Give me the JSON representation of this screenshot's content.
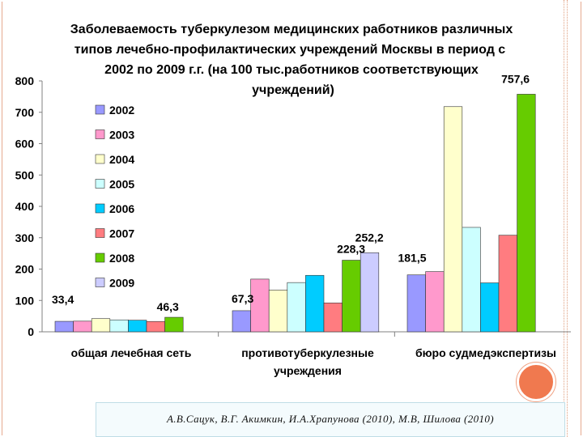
{
  "colors": {
    "series": [
      "#9999ff",
      "#ff99cc",
      "#ffffcc",
      "#ccffff",
      "#00ccff",
      "#ff7c80",
      "#66cc00",
      "#ccccff"
    ],
    "orange_accent": "#f0794f"
  },
  "footer": {
    "citation": "А.В.Сацук, В.Г. Акимкин,  И.А.Храпунова (2010), М.В, Шилова (2010)"
  },
  "chart_data": {
    "type": "bar",
    "title": "Заболеваемость туберкулезом медицинских работников различных типов лечебно-профилактических учреждений Москвы в период с 2002 по 2009 г.г. (на 100 тыс.работников соответствующих учреждений)",
    "title_lines": [
      "Заболеваемость туберкулезом медицинских работников различных",
      "типов лечебно-профилактических учреждений  Москвы в период с",
      "2002 по 2009 г.г. (на 100 тыс.работников соответствующих",
      "учреждений)"
    ],
    "categories": [
      "общая лечебная сеть",
      "противотуберкулезные учреждения",
      "бюро судмедэкспертизы"
    ],
    "category_lines": [
      [
        "общая лечебная сеть"
      ],
      [
        "противотуберкулезные",
        "учреждения"
      ],
      [
        "бюро судмедэкспертизы"
      ]
    ],
    "series": [
      {
        "name": "2002",
        "values": [
          33.4,
          67.3,
          181.5
        ]
      },
      {
        "name": "2003",
        "values": [
          34,
          168,
          192
        ]
      },
      {
        "name": "2004",
        "values": [
          42,
          133,
          718
        ]
      },
      {
        "name": "2005",
        "values": [
          38,
          157,
          333
        ]
      },
      {
        "name": "2006",
        "values": [
          37,
          180,
          156
        ]
      },
      {
        "name": "2007",
        "values": [
          33,
          92,
          308
        ]
      },
      {
        "name": "2008",
        "values": [
          46.3,
          228.3,
          757.6
        ]
      },
      {
        "name": "2009",
        "values": [
          0,
          252.2,
          0
        ]
      }
    ],
    "data_labels": [
      {
        "series": 0,
        "category": 0,
        "text": "33,4"
      },
      {
        "series": 6,
        "category": 0,
        "text": "46,3"
      },
      {
        "series": 0,
        "category": 1,
        "text": "67,3"
      },
      {
        "series": 6,
        "category": 1,
        "text": "228,3"
      },
      {
        "series": 7,
        "category": 1,
        "text": "252,2"
      },
      {
        "series": 0,
        "category": 2,
        "text": "181,5"
      },
      {
        "series": 6,
        "category": 2,
        "text": "757,6"
      }
    ],
    "ylim": [
      0,
      800
    ],
    "yticks": [
      0,
      100,
      200,
      300,
      400,
      500,
      600,
      700,
      800
    ],
    "xlabel": "",
    "ylabel": "",
    "legend_position": "upper-left inside plot",
    "grid": false
  }
}
